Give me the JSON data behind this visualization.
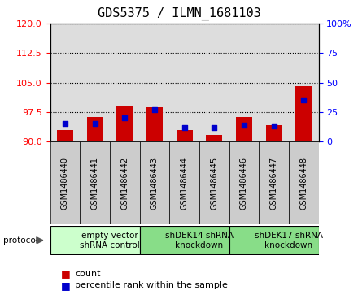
{
  "title": "GDS5375 / ILMN_1681103",
  "samples": [
    "GSM1486440",
    "GSM1486441",
    "GSM1486442",
    "GSM1486443",
    "GSM1486444",
    "GSM1486445",
    "GSM1486446",
    "GSM1486447",
    "GSM1486448"
  ],
  "counts": [
    93.0,
    96.2,
    99.2,
    98.7,
    93.0,
    91.8,
    96.2,
    94.2,
    104.2
  ],
  "percentiles": [
    15,
    15,
    20,
    27,
    12,
    12,
    14,
    13,
    35
  ],
  "ylim_left": [
    90,
    120
  ],
  "ylim_right": [
    0,
    100
  ],
  "yticks_left": [
    90,
    97.5,
    105,
    112.5,
    120
  ],
  "yticks_right": [
    0,
    25,
    50,
    75,
    100
  ],
  "bar_color": "#cc0000",
  "dot_color": "#0000cc",
  "bar_base": 90,
  "groups": [
    {
      "label": "empty vector\nshRNA control",
      "start": 0,
      "end": 3,
      "color": "#ccffcc"
    },
    {
      "label": "shDEK14 shRNA\nknockdown",
      "start": 3,
      "end": 6,
      "color": "#88dd88"
    },
    {
      "label": "shDEK17 shRNA\nknockdown",
      "start": 6,
      "end": 9,
      "color": "#88dd88"
    }
  ],
  "legend_count_label": "count",
  "legend_pct_label": "percentile rank within the sample",
  "protocol_label": "protocol",
  "plot_bg": "#dddddd",
  "tick_bg": "#cccccc",
  "title_fontsize": 11,
  "tick_fontsize": 7,
  "bar_width": 0.55
}
